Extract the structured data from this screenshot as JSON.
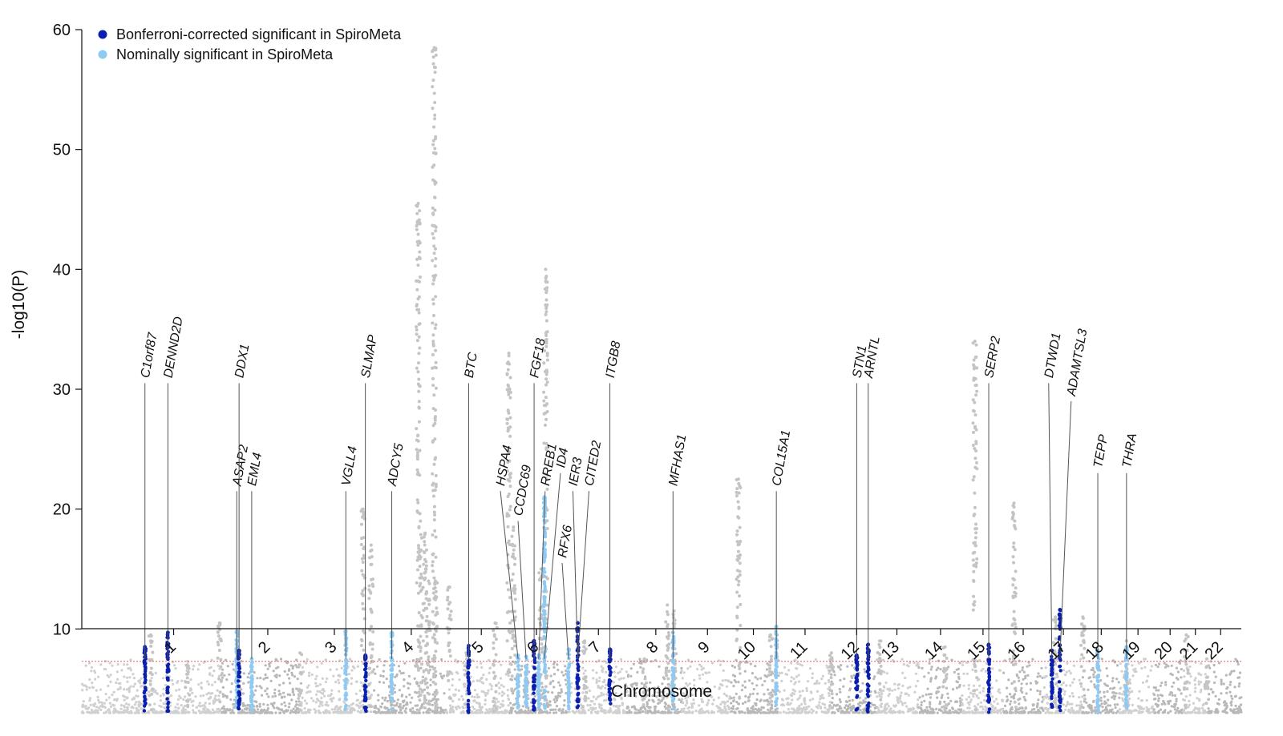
{
  "chart_data": {
    "type": "scatter",
    "subtype": "manhattan",
    "title": "",
    "xlabel": "Chromosome",
    "ylabel": "-log10(P)",
    "ylim": [
      0,
      60
    ],
    "yticks": [
      10,
      20,
      30,
      40,
      50,
      60
    ],
    "significance_threshold": 7.3,
    "chromosomes": [
      {
        "label": "1",
        "tick": 0.9
      },
      {
        "label": "2",
        "tick": 1.72
      },
      {
        "label": "3",
        "tick": 2.3
      },
      {
        "label": "4",
        "tick": 2.97
      },
      {
        "label": "5",
        "tick": 3.58
      },
      {
        "label": "6",
        "tick": 4.06
      },
      {
        "label": "7",
        "tick": 4.6
      },
      {
        "label": "8",
        "tick": 5.1
      },
      {
        "label": "9",
        "tick": 5.55
      },
      {
        "label": "10",
        "tick": 5.95
      },
      {
        "label": "11",
        "tick": 6.4
      },
      {
        "label": "12",
        "tick": 6.85
      },
      {
        "label": "13",
        "tick": 7.2
      },
      {
        "label": "14",
        "tick": 7.58
      },
      {
        "label": "15",
        "tick": 7.95
      },
      {
        "label": "16",
        "tick": 8.3
      },
      {
        "label": "17",
        "tick": 8.65
      },
      {
        "label": "18",
        "tick": 8.98
      },
      {
        "label": "19",
        "tick": 9.3
      },
      {
        "label": "20",
        "tick": 9.58
      },
      {
        "label": "21",
        "tick": 9.8
      },
      {
        "label": "22",
        "tick": 10.02
      }
    ],
    "legend": {
      "position": "top-left",
      "entries": [
        {
          "label": "Bonferroni-corrected significant in SpiroMeta",
          "color": "#0a1fae"
        },
        {
          "label": "Nominally significant in SpiroMeta",
          "color": "#8ecaf2"
        }
      ]
    },
    "background_peaks": [
      {
        "pos": 0.7,
        "max": 9.5
      },
      {
        "pos": 1.02,
        "max": 7.0
      },
      {
        "pos": 1.3,
        "max": 10.5
      },
      {
        "pos": 2.0,
        "max": 8.0
      },
      {
        "pos": 2.55,
        "max": 20.0
      },
      {
        "pos": 2.62,
        "max": 17.0
      },
      {
        "pos": 3.12,
        "max": 14.0
      },
      {
        "pos": 3.18,
        "max": 14.0
      },
      {
        "pos": 3.3,
        "max": 13.5
      },
      {
        "pos": 3.05,
        "max": 19.0
      },
      {
        "pos": 3.17,
        "max": 58.5
      },
      {
        "pos": 3.03,
        "max": 45.5
      },
      {
        "pos": 3.09,
        "max": 18.0
      },
      {
        "pos": 3.45,
        "max": 8.0
      },
      {
        "pos": 3.7,
        "max": 10.5
      },
      {
        "pos": 3.82,
        "max": 33.0
      },
      {
        "pos": 3.86,
        "max": 18.5
      },
      {
        "pos": 4.1,
        "max": 15.0
      },
      {
        "pos": 4.14,
        "max": 40.0
      },
      {
        "pos": 4.48,
        "max": 9.0
      },
      {
        "pos": 5.0,
        "max": 7.5
      },
      {
        "pos": 5.2,
        "max": 12.0
      },
      {
        "pos": 5.26,
        "max": 11.5
      },
      {
        "pos": 5.82,
        "max": 22.5
      },
      {
        "pos": 6.1,
        "max": 9.5
      },
      {
        "pos": 6.63,
        "max": 8.0
      },
      {
        "pos": 7.05,
        "max": 9.0
      },
      {
        "pos": 7.62,
        "max": 8.5
      },
      {
        "pos": 7.88,
        "max": 34.0
      },
      {
        "pos": 8.22,
        "max": 20.5
      },
      {
        "pos": 8.58,
        "max": 11.0
      },
      {
        "pos": 8.82,
        "max": 11.0
      },
      {
        "pos": 9.2,
        "max": 9.0
      },
      {
        "pos": 9.72,
        "max": 9.5
      },
      {
        "pos": 9.9,
        "max": 7.5
      }
    ],
    "highlight_peaks": [
      {
        "pos": 0.65,
        "max": 8.5,
        "color": "dark"
      },
      {
        "pos": 0.85,
        "max": 9.7,
        "color": "dark"
      },
      {
        "pos": 1.45,
        "max": 9.8,
        "color": "light"
      },
      {
        "pos": 1.47,
        "max": 8.2,
        "color": "dark"
      },
      {
        "pos": 1.58,
        "max": 7.5,
        "color": "light"
      },
      {
        "pos": 2.4,
        "max": 9.8,
        "color": "light"
      },
      {
        "pos": 2.57,
        "max": 7.8,
        "color": "dark"
      },
      {
        "pos": 2.8,
        "max": 9.7,
        "color": "light"
      },
      {
        "pos": 3.47,
        "max": 8.6,
        "color": "dark"
      },
      {
        "pos": 3.9,
        "max": 7.8,
        "color": "light"
      },
      {
        "pos": 3.97,
        "max": 7.7,
        "color": "light"
      },
      {
        "pos": 4.04,
        "max": 9.0,
        "color": "dark"
      },
      {
        "pos": 4.08,
        "max": 7.8,
        "color": "light"
      },
      {
        "pos": 4.13,
        "max": 21.0,
        "color": "light"
      },
      {
        "pos": 4.34,
        "max": 8.3,
        "color": "light"
      },
      {
        "pos": 4.42,
        "max": 10.5,
        "color": "dark"
      },
      {
        "pos": 4.7,
        "max": 8.3,
        "color": "dark"
      },
      {
        "pos": 5.25,
        "max": 9.7,
        "color": "light"
      },
      {
        "pos": 6.15,
        "max": 10.2,
        "color": "light"
      },
      {
        "pos": 6.85,
        "max": 7.8,
        "color": "dark"
      },
      {
        "pos": 6.95,
        "max": 8.7,
        "color": "dark"
      },
      {
        "pos": 8.0,
        "max": 8.7,
        "color": "dark"
      },
      {
        "pos": 8.55,
        "max": 8.2,
        "color": "dark"
      },
      {
        "pos": 8.62,
        "max": 11.6,
        "color": "dark"
      },
      {
        "pos": 8.95,
        "max": 8.2,
        "color": "light"
      },
      {
        "pos": 9.2,
        "max": 8.5,
        "color": "light"
      }
    ],
    "annotations": [
      {
        "gene": "C1orf87",
        "pos": 0.65,
        "line_top": 30.5
      },
      {
        "gene": "DENND2D",
        "pos": 0.85,
        "line_top": 30.5
      },
      {
        "gene": "ASAP2",
        "pos": 1.45,
        "line_top": 21.5
      },
      {
        "gene": "DDX1",
        "pos": 1.47,
        "line_top": 30.5
      },
      {
        "gene": "EML4",
        "pos": 1.58,
        "line_top": 21.5
      },
      {
        "gene": "VGLL4",
        "pos": 2.4,
        "line_top": 21.5
      },
      {
        "gene": "SLMAP",
        "pos": 2.57,
        "line_top": 30.5
      },
      {
        "gene": "ADCY5",
        "pos": 2.8,
        "line_top": 21.5
      },
      {
        "gene": "BTC",
        "pos": 3.47,
        "line_top": 30.5
      },
      {
        "gene": "HSPA4",
        "pos": 3.9,
        "line_top": 21.5
      },
      {
        "gene": "CCDC69",
        "pos": 3.97,
        "line_top": 19.0
      },
      {
        "gene": "FGF18",
        "pos": 4.04,
        "line_top": 30.5
      },
      {
        "gene": "RREB1",
        "pos": 4.08,
        "line_top": 21.5
      },
      {
        "gene": "ID4",
        "pos": 4.13,
        "line_top": 23.0
      },
      {
        "gene": "RFX6",
        "pos": 4.34,
        "line_top": 15.5
      },
      {
        "gene": "IER3",
        "pos": 4.42,
        "line_top": 21.5
      },
      {
        "gene": "CITED2",
        "pos": 4.42,
        "line_top": 21.5
      },
      {
        "gene": "ITGB8",
        "pos": 4.7,
        "line_top": 30.5
      },
      {
        "gene": "MFHAS1",
        "pos": 5.25,
        "line_top": 21.5
      },
      {
        "gene": "COL15A1",
        "pos": 6.15,
        "line_top": 21.5
      },
      {
        "gene": "STN1",
        "pos": 6.85,
        "line_top": 30.5
      },
      {
        "gene": "ARNTL",
        "pos": 6.95,
        "line_top": 30.5
      },
      {
        "gene": "SERP2",
        "pos": 8.0,
        "line_top": 30.5
      },
      {
        "gene": "DTWD1",
        "pos": 8.55,
        "line_top": 30.5
      },
      {
        "gene": "ADAMTSL3",
        "pos": 8.62,
        "line_top": 29.0
      },
      {
        "gene": "TEPP",
        "pos": 8.95,
        "line_top": 23.0
      },
      {
        "gene": "THRA",
        "pos": 9.2,
        "line_top": 23.0
      }
    ]
  }
}
